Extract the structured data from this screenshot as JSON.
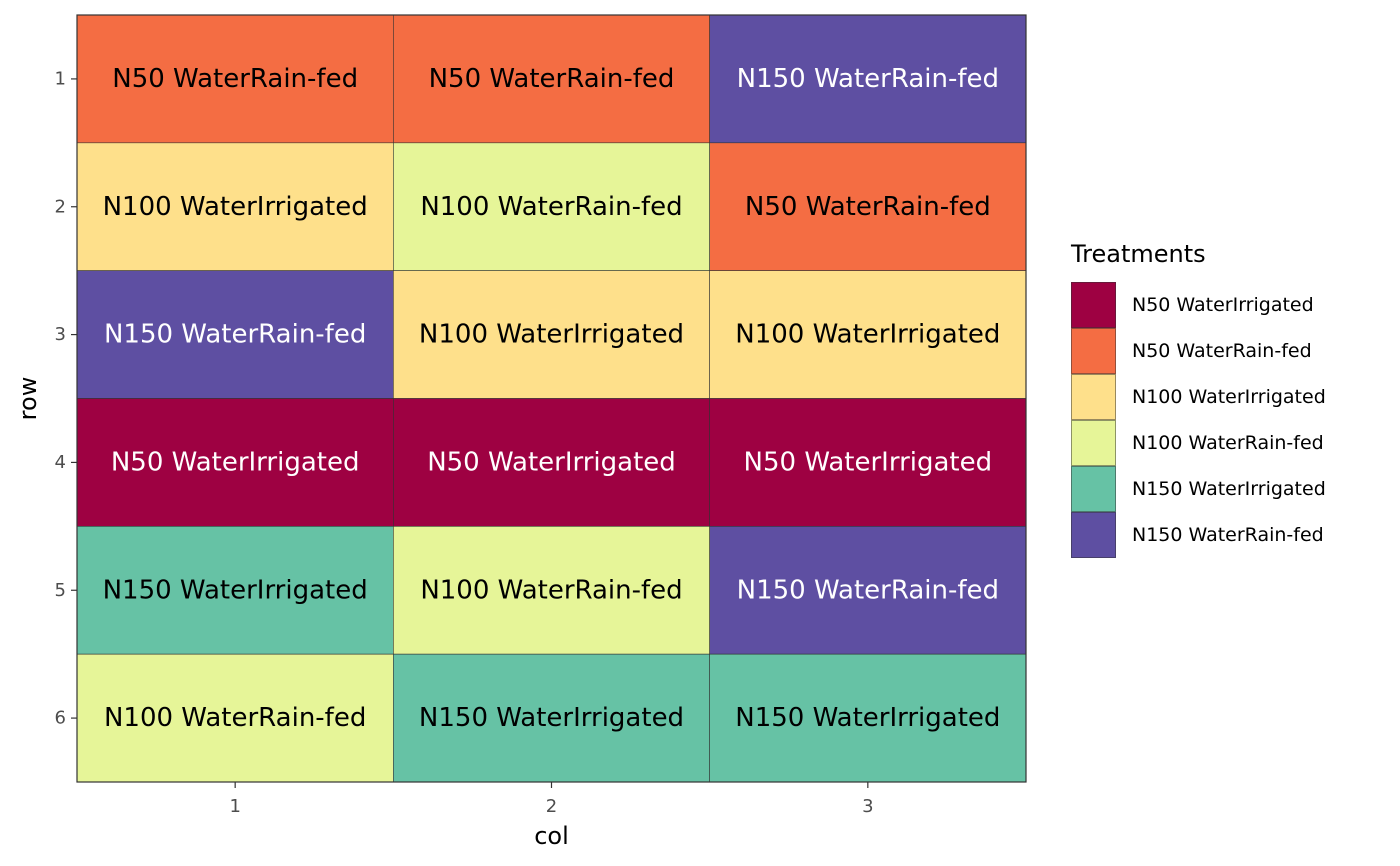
{
  "chart_data": {
    "type": "heatmap",
    "xlabel": "col",
    "ylabel": "row",
    "x_categories": [
      "1",
      "2",
      "3"
    ],
    "y_categories": [
      "1",
      "2",
      "3",
      "4",
      "5",
      "6"
    ],
    "legend_title": "Treatments",
    "legend_position": "right",
    "treatments": [
      {
        "name": "N50 WaterIrrigated",
        "color": "#9E0142",
        "text_color": "#FFFFFF"
      },
      {
        "name": "N50 WaterRain-fed",
        "color": "#F46D43",
        "text_color": "#000000"
      },
      {
        "name": "N100 WaterIrrigated",
        "color": "#FEE08B",
        "text_color": "#000000"
      },
      {
        "name": "N100 WaterRain-fed",
        "color": "#E6F598",
        "text_color": "#000000"
      },
      {
        "name": "N150 WaterIrrigated",
        "color": "#66C2A5",
        "text_color": "#000000"
      },
      {
        "name": "N150 WaterRain-fed",
        "color": "#5E4FA2",
        "text_color": "#FFFFFF"
      }
    ],
    "cells": [
      {
        "row": 1,
        "col": 1,
        "treatment": "N50 WaterRain-fed"
      },
      {
        "row": 1,
        "col": 2,
        "treatment": "N50 WaterRain-fed"
      },
      {
        "row": 1,
        "col": 3,
        "treatment": "N150 WaterRain-fed"
      },
      {
        "row": 2,
        "col": 1,
        "treatment": "N100 WaterIrrigated"
      },
      {
        "row": 2,
        "col": 2,
        "treatment": "N100 WaterRain-fed"
      },
      {
        "row": 2,
        "col": 3,
        "treatment": "N50 WaterRain-fed"
      },
      {
        "row": 3,
        "col": 1,
        "treatment": "N150 WaterRain-fed"
      },
      {
        "row": 3,
        "col": 2,
        "treatment": "N100 WaterIrrigated"
      },
      {
        "row": 3,
        "col": 3,
        "treatment": "N100 WaterIrrigated"
      },
      {
        "row": 4,
        "col": 1,
        "treatment": "N50 WaterIrrigated"
      },
      {
        "row": 4,
        "col": 2,
        "treatment": "N50 WaterIrrigated"
      },
      {
        "row": 4,
        "col": 3,
        "treatment": "N50 WaterIrrigated"
      },
      {
        "row": 5,
        "col": 1,
        "treatment": "N150 WaterIrrigated"
      },
      {
        "row": 5,
        "col": 2,
        "treatment": "N100 WaterRain-fed"
      },
      {
        "row": 5,
        "col": 3,
        "treatment": "N150 WaterRain-fed"
      },
      {
        "row": 6,
        "col": 1,
        "treatment": "N100 WaterRain-fed"
      },
      {
        "row": 6,
        "col": 2,
        "treatment": "N150 WaterIrrigated"
      },
      {
        "row": 6,
        "col": 3,
        "treatment": "N150 WaterIrrigated"
      }
    ]
  }
}
